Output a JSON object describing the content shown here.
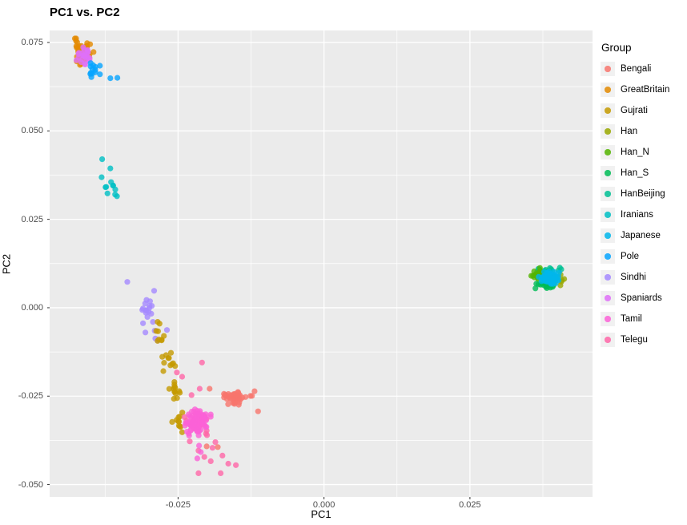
{
  "chart_data": {
    "type": "scatter",
    "title": "PC1 vs. PC2",
    "xlabel": "PC1",
    "ylabel": "PC2",
    "legend_title": "Group",
    "panel_bg": "#EBEBEB",
    "grid_color": "#FFFFFF",
    "tick_mark_color": "#333333",
    "tick_label_color": "#4D4D4D",
    "point_radius": 3.6,
    "point_opacity": 0.8,
    "xlim": [
      -0.047,
      0.046
    ],
    "ylim": [
      -0.0535,
      0.0784
    ],
    "x_ticks": [
      {
        "v": -0.025,
        "label": "-0.025"
      },
      {
        "v": 0.0,
        "label": "0.000"
      },
      {
        "v": 0.025,
        "label": "0.025"
      }
    ],
    "y_ticks": [
      {
        "v": 0.075,
        "label": "0.075"
      },
      {
        "v": 0.05,
        "label": "0.050"
      },
      {
        "v": 0.025,
        "label": "0.025"
      },
      {
        "v": 0.0,
        "label": "0.000"
      },
      {
        "v": -0.025,
        "label": "-0.025"
      },
      {
        "v": -0.05,
        "label": "-0.050"
      }
    ],
    "x_minor": [
      -0.0375,
      -0.0125,
      0.0125,
      0.0375
    ],
    "y_minor": [
      0.0625,
      0.0375,
      0.0125,
      -0.0125,
      -0.0375
    ],
    "groups": [
      {
        "name": "Bengali",
        "color": "#F8766D"
      },
      {
        "name": "GreatBritain",
        "color": "#E38900"
      },
      {
        "name": "Gujrati",
        "color": "#C49A00"
      },
      {
        "name": "Han",
        "color": "#99A800"
      },
      {
        "name": "Han_N",
        "color": "#53B400"
      },
      {
        "name": "Han_S",
        "color": "#00BC56"
      },
      {
        "name": "HanBeijing",
        "color": "#00C094"
      },
      {
        "name": "Iranians",
        "color": "#00BFC4"
      },
      {
        "name": "Japanese",
        "color": "#00B6EB"
      },
      {
        "name": "Pole",
        "color": "#06A4FF"
      },
      {
        "name": "Sindhi",
        "color": "#A58AFF"
      },
      {
        "name": "Spaniards",
        "color": "#DF70F8"
      },
      {
        "name": "Tamil",
        "color": "#FB61D7"
      },
      {
        "name": "Telegu",
        "color": "#FF66A8"
      }
    ],
    "clusters": [
      {
        "group": "GreatBritain",
        "seed": 11,
        "n": 42,
        "cx": -0.0413,
        "cy": 0.0724,
        "sx": 0.0009,
        "sy": 0.0017,
        "pts": []
      },
      {
        "group": "Spaniards",
        "seed": 12,
        "n": 26,
        "cx": -0.0412,
        "cy": 0.0712,
        "sx": 0.00055,
        "sy": 0.0011,
        "pts": []
      },
      {
        "group": "Pole",
        "seed": 13,
        "n": 13,
        "cx": -0.0396,
        "cy": 0.0672,
        "sx": 0.00055,
        "sy": 0.0009,
        "pts": [
          [
            -0.0366,
            0.0649
          ],
          [
            -0.0354,
            0.065
          ]
        ]
      },
      {
        "group": "Iranians",
        "seed": 14,
        "n": 9,
        "cx": -0.0363,
        "cy": 0.0331,
        "sx": 0.0007,
        "sy": 0.0011,
        "pts": [
          [
            -0.038,
            0.042
          ],
          [
            -0.0366,
            0.0394
          ],
          [
            -0.0381,
            0.0369
          ]
        ]
      },
      {
        "group": "Han",
        "seed": 15,
        "n": 22,
        "cx": 0.0393,
        "cy": 0.0079,
        "sx": 0.0009,
        "sy": 0.0012,
        "pts": []
      },
      {
        "group": "HanBeijing",
        "seed": 16,
        "n": 18,
        "cx": 0.0384,
        "cy": 0.0107,
        "sx": 0.0012,
        "sy": 0.0005,
        "pts": []
      },
      {
        "group": "Han_N",
        "seed": 17,
        "n": 18,
        "cx": 0.0366,
        "cy": 0.0094,
        "sx": 0.0007,
        "sy": 0.0009,
        "pts": []
      },
      {
        "group": "Han_S",
        "seed": 18,
        "n": 18,
        "cx": 0.0383,
        "cy": 0.0063,
        "sx": 0.0011,
        "sy": 0.0006,
        "pts": []
      },
      {
        "group": "Japanese",
        "seed": 19,
        "n": 70,
        "cx": 0.0385,
        "cy": 0.0084,
        "sx": 0.0008,
        "sy": 0.0008,
        "pts": []
      },
      {
        "group": "Sindhi",
        "seed": 20,
        "n": 10,
        "cx": -0.0302,
        "cy": -0.001,
        "sx": 0.00055,
        "sy": 0.0018,
        "pts": [
          [
            -0.0337,
            0.0073
          ],
          [
            -0.0291,
            0.0048
          ],
          [
            -0.0304,
            0.0022
          ],
          [
            -0.0299,
            0.0005
          ],
          [
            -0.0304,
            -0.0008
          ],
          [
            -0.0296,
            -0.0017
          ],
          [
            -0.031,
            -0.0044
          ],
          [
            -0.0293,
            -0.004
          ],
          [
            -0.0306,
            -0.007
          ],
          [
            -0.029,
            -0.0065
          ],
          [
            -0.0269,
            -0.0063
          ],
          [
            -0.0289,
            -0.0087
          ],
          [
            -0.0285,
            -0.0093
          ]
        ]
      },
      {
        "group": "Gujrati",
        "seed": 21,
        "n": 8,
        "cx": -0.0279,
        "cy": -0.0075,
        "sx": 0.0005,
        "sy": 0.0016,
        "pts": []
      },
      {
        "group": "Gujrati",
        "seed": 22,
        "n": 11,
        "cx": -0.0266,
        "cy": -0.015,
        "sx": 0.0005,
        "sy": 0.0016,
        "pts": []
      },
      {
        "group": "Gujrati",
        "seed": 23,
        "n": 13,
        "cx": -0.0258,
        "cy": -0.023,
        "sx": 0.0005,
        "sy": 0.0018,
        "pts": [
          [
            -0.0285,
            -0.004
          ],
          [
            -0.0243,
            -0.0352
          ],
          [
            -0.0247,
            -0.0335
          ]
        ]
      },
      {
        "group": "Gujrati",
        "seed": 24,
        "n": 9,
        "cx": -0.025,
        "cy": -0.0315,
        "sx": 0.0005,
        "sy": 0.0014,
        "pts": []
      },
      {
        "group": "Telegu",
        "seed": 25,
        "n": 14,
        "cx": -0.022,
        "cy": -0.0331,
        "sx": 0.0014,
        "sy": 0.002,
        "pts": [
          [
            -0.0213,
            -0.0229
          ],
          [
            -0.0227,
            -0.0247
          ],
          [
            -0.0215,
            -0.0404
          ],
          [
            -0.0205,
            -0.0422
          ],
          [
            -0.0194,
            -0.0434
          ],
          [
            -0.0174,
            -0.0418
          ],
          [
            -0.0164,
            -0.0441
          ],
          [
            -0.0215,
            -0.0468
          ],
          [
            -0.0177,
            -0.0468
          ],
          [
            -0.0151,
            -0.0445
          ],
          [
            -0.0209,
            -0.0155
          ],
          [
            -0.0252,
            -0.0183
          ],
          [
            -0.0243,
            -0.0195
          ],
          [
            -0.0191,
            -0.0396
          ],
          [
            -0.023,
            -0.0378
          ],
          [
            -0.0186,
            -0.038
          ]
        ]
      },
      {
        "group": "Bengali",
        "seed": 26,
        "n": 40,
        "cx": -0.0152,
        "cy": -0.0255,
        "sx": 0.0013,
        "sy": 0.001,
        "pts": [
          [
            -0.0196,
            -0.0229
          ],
          [
            -0.0113,
            -0.0293
          ],
          [
            -0.0119,
            -0.0236
          ],
          [
            -0.0201,
            -0.0392
          ],
          [
            -0.0182,
            -0.0394
          ]
        ]
      },
      {
        "group": "Tamil",
        "seed": 27,
        "n": 80,
        "cx": -0.0216,
        "cy": -0.0324,
        "sx": 0.001,
        "sy": 0.0017,
        "pts": [
          [
            -0.0214,
            -0.039
          ],
          [
            -0.0211,
            -0.0408
          ],
          [
            -0.0217,
            -0.0426
          ]
        ]
      }
    ]
  }
}
